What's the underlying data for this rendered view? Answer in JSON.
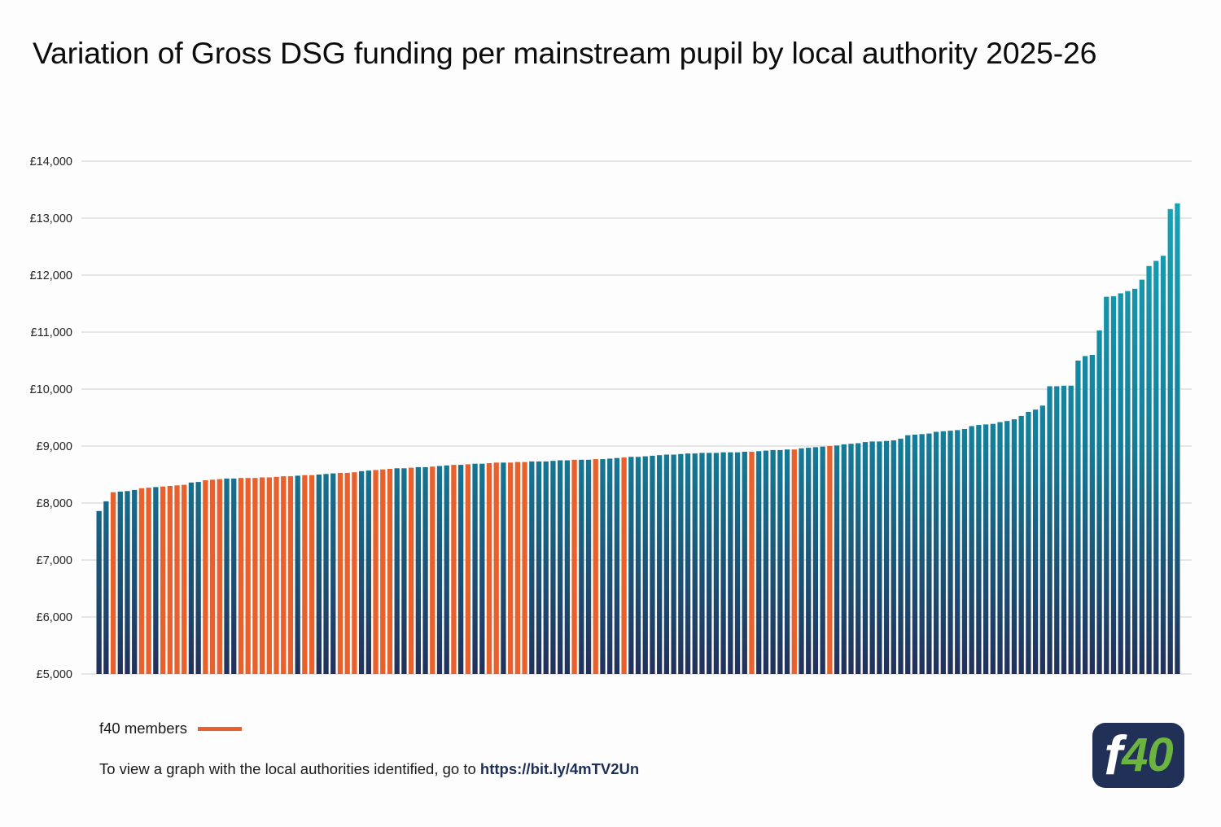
{
  "chart_data": {
    "type": "bar",
    "title": "Variation of Gross DSG funding per mainstream pupil by local authority 2025-26",
    "xlabel": "",
    "ylabel": "",
    "ylim": [
      5000,
      14000
    ],
    "ytick_values": [
      5000,
      6000,
      7000,
      8000,
      9000,
      10000,
      11000,
      12000,
      13000,
      14000
    ],
    "ytick_labels": [
      "£5,000",
      "£6,000",
      "£7,000",
      "£8,000",
      "£9,000",
      "£10,000",
      "£11,000",
      "£12,000",
      "£13,000",
      "£14,000"
    ],
    "grid": true,
    "legend": {
      "label": "f40 members",
      "color": "#e8602c",
      "placement": "bottom-left"
    },
    "colors": {
      "f40": "#e8602c",
      "other_top": "#16a3b8",
      "other_bottom": "#21305a"
    },
    "values": [
      7860,
      8030,
      8190,
      8200,
      8210,
      8230,
      8260,
      8270,
      8280,
      8290,
      8300,
      8310,
      8320,
      8360,
      8370,
      8400,
      8410,
      8420,
      8430,
      8430,
      8440,
      8440,
      8440,
      8450,
      8450,
      8460,
      8470,
      8470,
      8480,
      8490,
      8490,
      8500,
      8510,
      8520,
      8530,
      8530,
      8540,
      8560,
      8570,
      8580,
      8590,
      8600,
      8610,
      8610,
      8620,
      8630,
      8630,
      8640,
      8650,
      8660,
      8670,
      8670,
      8680,
      8690,
      8690,
      8700,
      8710,
      8710,
      8710,
      8720,
      8720,
      8730,
      8730,
      8730,
      8740,
      8750,
      8750,
      8760,
      8760,
      8760,
      8770,
      8770,
      8780,
      8790,
      8800,
      8810,
      8810,
      8820,
      8830,
      8840,
      8850,
      8850,
      8860,
      8870,
      8870,
      8880,
      8880,
      8880,
      8890,
      8890,
      8890,
      8900,
      8900,
      8910,
      8920,
      8930,
      8930,
      8940,
      8940,
      8960,
      8970,
      8980,
      8990,
      9000,
      9010,
      9030,
      9040,
      9050,
      9070,
      9080,
      9080,
      9090,
      9100,
      9130,
      9190,
      9200,
      9210,
      9220,
      9250,
      9260,
      9270,
      9280,
      9300,
      9350,
      9370,
      9380,
      9390,
      9420,
      9440,
      9470,
      9530,
      9600,
      9640,
      9710,
      10050,
      10050,
      10060,
      10060,
      10500,
      10580,
      10600,
      11030,
      11620,
      11630,
      11680,
      11720,
      11760,
      11920,
      12160,
      12250,
      12340,
      13160,
      13260
    ],
    "f40_member_flags": [
      false,
      false,
      true,
      false,
      false,
      false,
      true,
      true,
      false,
      true,
      true,
      true,
      true,
      false,
      false,
      true,
      true,
      true,
      false,
      false,
      true,
      true,
      true,
      true,
      true,
      true,
      true,
      true,
      false,
      true,
      true,
      false,
      false,
      false,
      true,
      true,
      true,
      false,
      false,
      true,
      true,
      true,
      false,
      false,
      true,
      false,
      false,
      true,
      false,
      false,
      true,
      false,
      true,
      false,
      false,
      true,
      true,
      false,
      true,
      true,
      true,
      false,
      false,
      false,
      false,
      false,
      false,
      true,
      false,
      false,
      true,
      false,
      false,
      false,
      true,
      false,
      false,
      false,
      false,
      false,
      false,
      false,
      false,
      false,
      false,
      false,
      false,
      false,
      false,
      false,
      false,
      false,
      true,
      false,
      false,
      false,
      false,
      false,
      true,
      false,
      false,
      false,
      false,
      true,
      false,
      false,
      false,
      false,
      false,
      false,
      false,
      false,
      false,
      false,
      false,
      false,
      false,
      false,
      false,
      false,
      false,
      false,
      false,
      false,
      false,
      false,
      false,
      false,
      false,
      false,
      false,
      false,
      false,
      false,
      false,
      false,
      false,
      false,
      false,
      false,
      false,
      false,
      false,
      false,
      false,
      false,
      false,
      false,
      false,
      false,
      false,
      false,
      false
    ]
  },
  "footer": {
    "legend_label": "f40 members",
    "note_text": "To view a graph with the local authorities identified, go to ",
    "note_link": "https://bit.ly/4mTV2Un"
  },
  "logo": {
    "prefix": "f",
    "number": "40"
  }
}
